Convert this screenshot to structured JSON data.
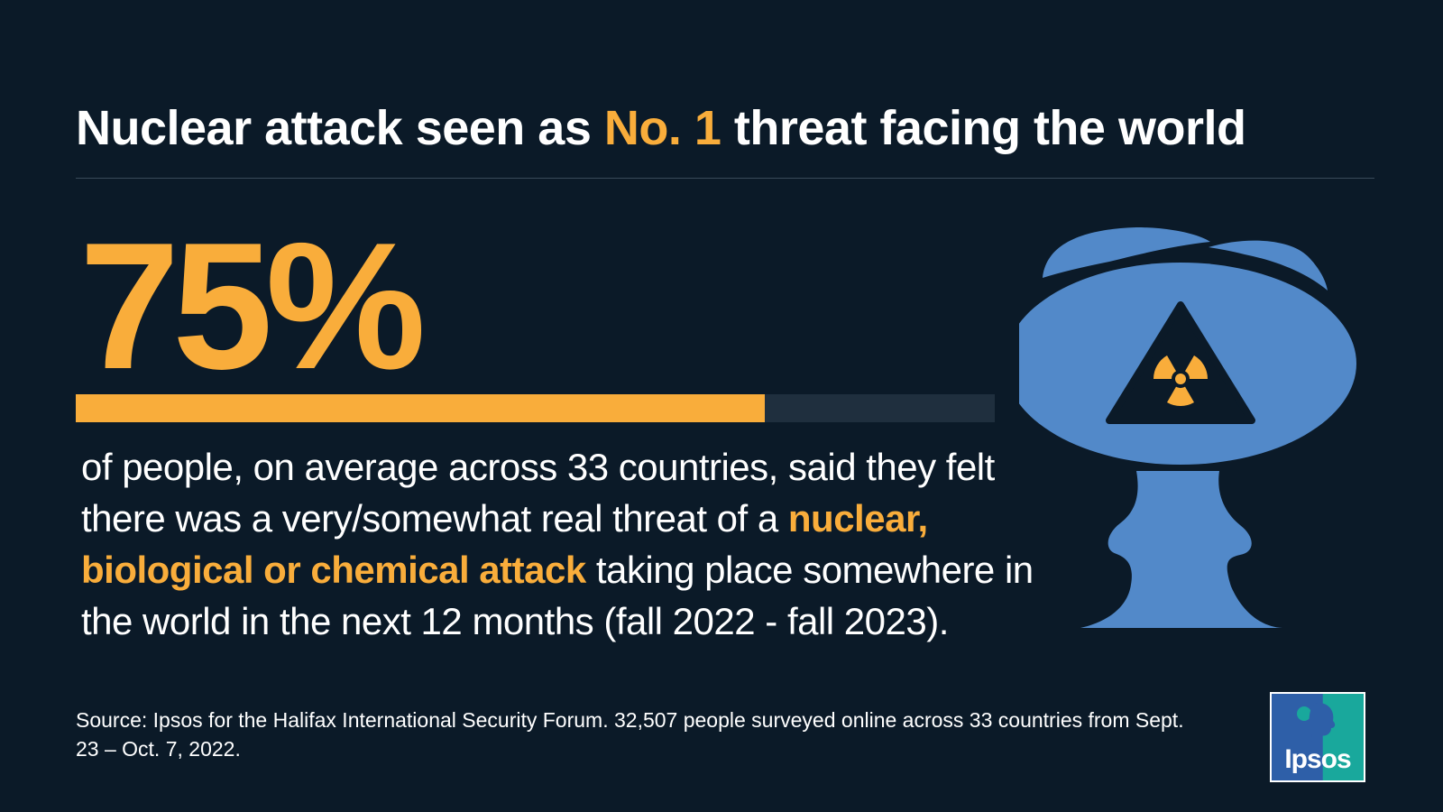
{
  "headline": {
    "part1": "Nuclear attack seen as ",
    "highlight": "No. 1",
    "part2": " threat facing the world"
  },
  "stat": {
    "value": "75%",
    "fraction": 0.75
  },
  "description": {
    "text1": "of people, on average across 33 countries, said they felt there was a very/somewhat real threat of a ",
    "highlight": "nuclear, biological or chemical attack",
    "text2": " taking place somewhere in the world in the next 12 months (fall 2022 - fall 2023)."
  },
  "source": "Source: Ipsos for the Halifax International Security Forum. 32,507 people surveyed online across 33 countries from Sept. 23 – Oct. 7, 2022.",
  "logo": {
    "label": "Ipsos",
    "icon": "ipsos-logo-icon"
  },
  "icons": {
    "illustration": "mushroom-cloud-radiation-icon"
  },
  "colors": {
    "background": "#0b1a28",
    "accent": "#f9ad3b",
    "bar_track": "#1f2f3e",
    "cloud": "#5289c9",
    "logo_blue": "#2e5fa8",
    "logo_teal": "#19a89c"
  }
}
